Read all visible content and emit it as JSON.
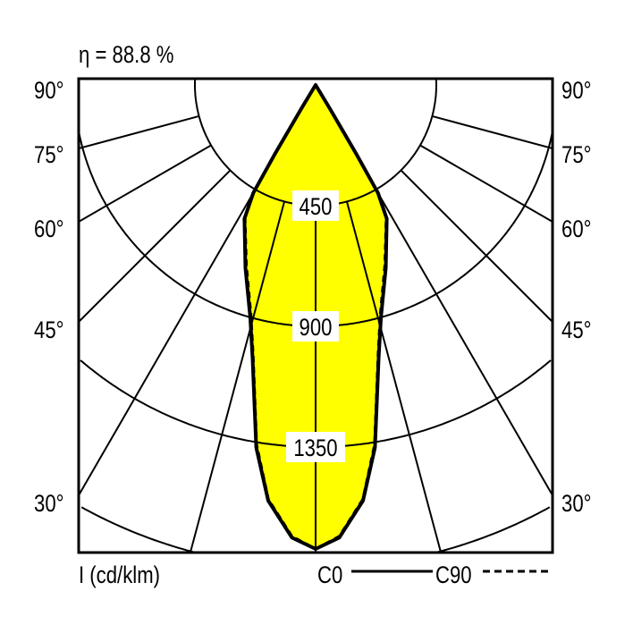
{
  "chart_data": {
    "type": "polar-line",
    "title": "η = 88.8 %",
    "unit_label": "I (cd/klm)",
    "radial_ticks": [
      450,
      900,
      1350,
      1800
    ],
    "radial_tick_labels": [
      "450",
      "900",
      "1350"
    ],
    "angle_ticks": [
      90,
      75,
      60,
      45,
      30,
      15,
      0
    ],
    "angle_tick_labels": [
      "90°",
      "75°",
      "60°",
      "45°",
      "30°"
    ],
    "series": [
      {
        "name": "C0",
        "style": "solid",
        "angles": [
          0,
          3,
          6.5,
          9.3,
          13,
          15.7,
          21,
          28,
          30,
          30.5,
          31,
          31.5
        ],
        "values": [
          1730,
          1690,
          1560,
          1370,
          1045,
          900,
          730,
          565,
          465,
          300,
          100,
          0
        ]
      },
      {
        "name": "C90",
        "style": "dashed",
        "angles": [
          0,
          3,
          6.5,
          9.3,
          13,
          15.7,
          21,
          28,
          30,
          30.5,
          31,
          31.5
        ],
        "values": [
          1730,
          1685,
          1555,
          1360,
          1035,
          890,
          720,
          560,
          460,
          300,
          100,
          0
        ]
      }
    ],
    "fill_color": "#ffff00",
    "line_color": "#000000"
  }
}
